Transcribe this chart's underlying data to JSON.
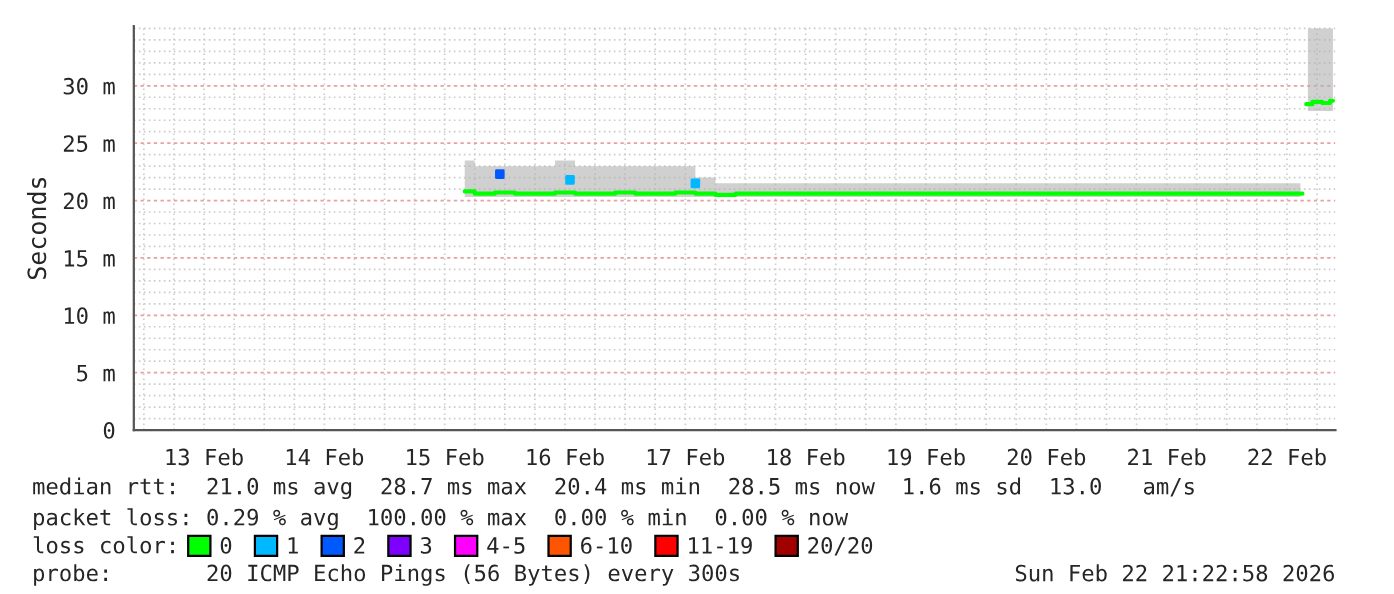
{
  "chart_data": {
    "type": "line",
    "ylabel": "Seconds",
    "legend_title": "loss color:",
    "legend": "bottom",
    "grid": true,
    "xlim": [
      "2026-02-12T22:00",
      "2026-02-22T21:40"
    ],
    "xticks": [
      {
        "value": "2026-02-13T12:00",
        "label": "13 Feb"
      },
      {
        "value": "2026-02-14T12:00",
        "label": "14 Feb"
      },
      {
        "value": "2026-02-15T12:00",
        "label": "15 Feb"
      },
      {
        "value": "2026-02-16T12:00",
        "label": "16 Feb"
      },
      {
        "value": "2026-02-17T12:00",
        "label": "17 Feb"
      },
      {
        "value": "2026-02-18T12:00",
        "label": "18 Feb"
      },
      {
        "value": "2026-02-19T12:00",
        "label": "19 Feb"
      },
      {
        "value": "2026-02-20T12:00",
        "label": "20 Feb"
      },
      {
        "value": "2026-02-21T12:00",
        "label": "21 Feb"
      },
      {
        "value": "2026-02-22T12:00",
        "label": "22 Feb"
      }
    ],
    "ylim": [
      0,
      35.2
    ],
    "yticks": [
      0,
      {
        "value": 5,
        "label": "5 m"
      },
      {
        "value": 10,
        "label": "10 m"
      },
      {
        "value": 15,
        "label": "15 m"
      },
      {
        "value": 20,
        "label": "20 m"
      },
      {
        "value": 25,
        "label": "25 m"
      },
      {
        "value": 30,
        "label": "30 m"
      }
    ],
    "series": [
      {
        "name": "0",
        "color": "#00ff00",
        "x": [
          "2026-02-15T16:00",
          "2026-02-15T20:00",
          "2026-02-16T00:00",
          "2026-02-16T04:00",
          "2026-02-16T08:00",
          "2026-02-16T12:00",
          "2026-02-16T16:00",
          "2026-02-16T20:00",
          "2026-02-17T00:00",
          "2026-02-17T04:00",
          "2026-02-17T08:00",
          "2026-02-17T12:00",
          "2026-02-17T16:00",
          "2026-02-17T20:00",
          "2026-02-18T00:00",
          "2026-02-18T06:00",
          "2026-02-18T12:00",
          "2026-02-18T18:00",
          "2026-02-19T00:00",
          "2026-02-19T06:00",
          "2026-02-19T12:00",
          "2026-02-19T18:00",
          "2026-02-20T00:00",
          "2026-02-20T06:00",
          "2026-02-20T12:00",
          "2026-02-20T18:00",
          "2026-02-21T00:00",
          "2026-02-21T06:00",
          "2026-02-21T12:00",
          "2026-02-21T18:00",
          "2026-02-22T00:00",
          "2026-02-22T06:00",
          "2026-02-22T14:40",
          "2026-02-22T15:30",
          "2026-02-22T16:10",
          "2026-02-22T18:00",
          "2026-02-22T20:00",
          "2026-02-22T21:10"
        ],
        "values": [
          20.8,
          20.6,
          20.7,
          20.6,
          20.6,
          20.7,
          20.6,
          20.6,
          20.7,
          20.6,
          20.6,
          20.7,
          20.6,
          20.5,
          20.6,
          20.6,
          20.6,
          20.6,
          20.6,
          20.6,
          20.6,
          20.6,
          20.6,
          20.6,
          20.6,
          20.6,
          20.6,
          20.6,
          20.6,
          20.6,
          20.6,
          20.6,
          20.6,
          null,
          28.4,
          28.6,
          28.5,
          28.7
        ],
        "lower": [
          20.3,
          20.3,
          20.3,
          20.3,
          20.3,
          20.3,
          20.3,
          20.3,
          20.3,
          20.3,
          20.3,
          20.3,
          20.3,
          20.3,
          20.3,
          20.3,
          20.3,
          20.3,
          20.3,
          20.3,
          20.3,
          20.3,
          20.3,
          20.3,
          20.3,
          20.3,
          20.3,
          20.3,
          20.3,
          20.3,
          20.3,
          20.3,
          20.3,
          null,
          27.8,
          27.8,
          27.8,
          27.8
        ],
        "upper": [
          23.5,
          23.0,
          23.0,
          23.0,
          23.0,
          23.5,
          23.0,
          23.0,
          23.0,
          23.0,
          23.0,
          23.0,
          22.0,
          21.5,
          21.5,
          21.5,
          21.5,
          21.5,
          21.5,
          21.5,
          21.5,
          21.5,
          21.5,
          21.5,
          21.5,
          21.5,
          21.5,
          21.5,
          21.5,
          21.5,
          21.5,
          21.5,
          21.5,
          null,
          35.0,
          35.0,
          35.0,
          35.0
        ]
      },
      {
        "name": "1",
        "type": "scatter",
        "color": "#00b8ff",
        "x": [
          "2026-02-16T13:00",
          "2026-02-17T14:00"
        ],
        "values": [
          21.8,
          21.5
        ]
      },
      {
        "name": "2",
        "type": "scatter",
        "color": "#0059ff",
        "x": [
          "2026-02-15T23:00"
        ],
        "values": [
          22.3
        ]
      },
      {
        "name": "3",
        "type": "scatter",
        "color": "#7e00ff"
      },
      {
        "name": "4-5",
        "type": "scatter",
        "color": "#ff00ff"
      },
      {
        "name": "6-10",
        "type": "scatter",
        "color": "#ff5500"
      },
      {
        "name": "11-19",
        "type": "scatter",
        "color": "#ff0000"
      },
      {
        "name": "20/20",
        "type": "scatter",
        "color": "#a10000"
      }
    ],
    "annotations": [
      "median rtt:  21.0 ms avg  28.7 ms max  20.4 ms min  28.5 ms now  1.6 ms sd  13.0   am/s",
      "packet loss: 0.29 % avg  100.00 % max  0.00 % min  0.00 % now",
      "probe:       20 ICMP Echo Pings (56 Bytes) every 300s",
      "Sun Feb 22 21:22:58 2026"
    ]
  }
}
